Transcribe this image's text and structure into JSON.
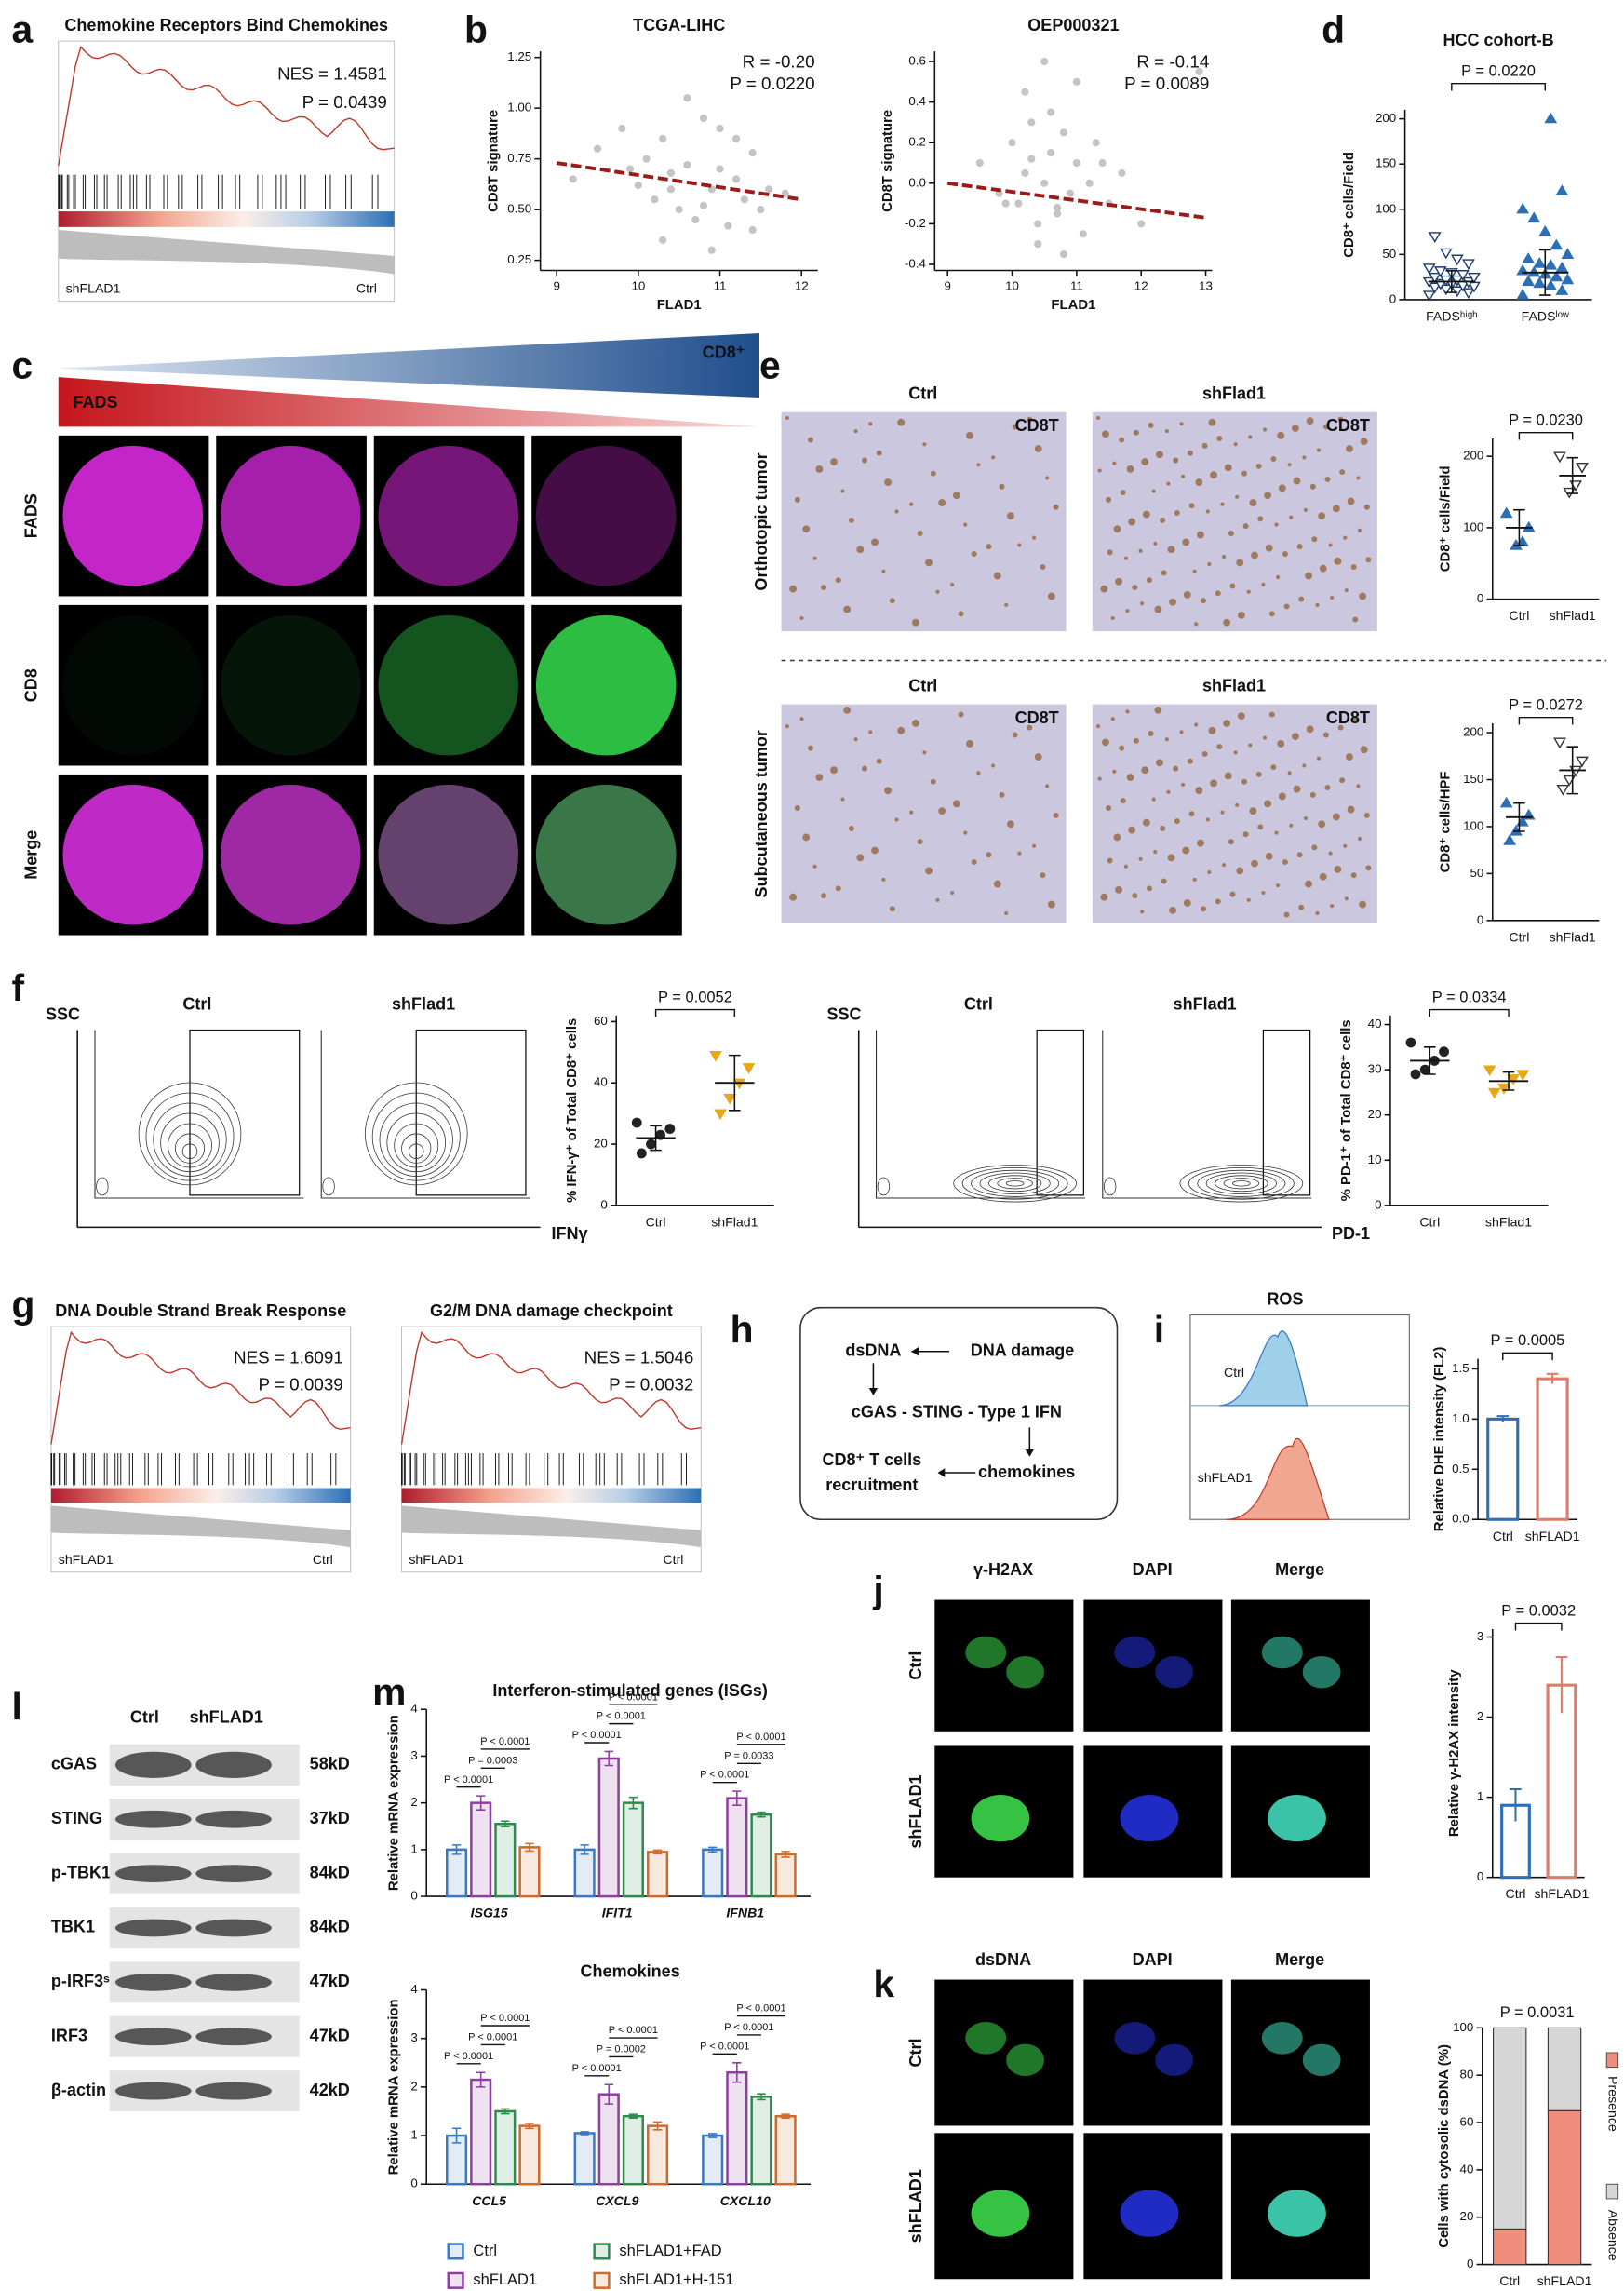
{
  "panel_labels": [
    "a",
    "b",
    "c",
    "d",
    "e",
    "f",
    "g",
    "h",
    "i",
    "j",
    "k",
    "l",
    "m"
  ],
  "gsea": [
    {
      "title": "Chemokine Receptors Bind Chemokines",
      "nes": "NES = 1.4581",
      "p": "P = 0.0439",
      "left": "shFLAD1",
      "right": "Ctrl"
    },
    {
      "title": "DNA Double Strand Break Response",
      "nes": "NES = 1.6091",
      "p": "P = 0.0039",
      "left": "shFLAD1",
      "right": "Ctrl"
    },
    {
      "title": "G2/M DNA damage checkpoint",
      "nes": "NES = 1.5046",
      "p": "P = 0.0032",
      "left": "shFLAD1",
      "right": "Ctrl"
    }
  ],
  "panel_c": {
    "gradient_left": "FADS",
    "gradient_right": "CD8⁺",
    "rows": [
      "FADS",
      "CD8",
      "Merge"
    ]
  },
  "panel_e": {
    "columns": [
      "Ctrl",
      "shFlad1"
    ],
    "rows": [
      "Orthotopic tumor",
      "Subcutaneous tumor"
    ],
    "stain": "CD8T"
  },
  "panel_f": {
    "groups": [
      "Ctrl",
      "shFlad1"
    ],
    "y_label": "SSC",
    "x_labels": [
      "IFNγ",
      "PD-1"
    ]
  },
  "panel_h": {
    "nodes": [
      "dsDNA",
      "DNA damage",
      "cGAS - STING - Type 1 IFN",
      "chemokines",
      "CD8⁺ T cells",
      "recruitment"
    ]
  },
  "panel_i": {
    "title": "ROS",
    "groups": [
      "Ctrl",
      "shFLAD1"
    ]
  },
  "panel_j": {
    "columns": [
      "γ-H2AX",
      "DAPI",
      "Merge"
    ],
    "rows": [
      "Ctrl",
      "shFLAD1"
    ]
  },
  "panel_k": {
    "columns": [
      "dsDNA",
      "DAPI",
      "Merge"
    ],
    "rows": [
      "Ctrl",
      "shFLAD1"
    ]
  },
  "panel_l": {
    "columns": [
      "Ctrl",
      "shFLAD1"
    ],
    "proteins": [
      "cGAS",
      "STING",
      "p-TBK1ˢ¹⁷²",
      "TBK1",
      "p-IRF3ˢ³⁹⁶",
      "IRF3",
      "β-actin"
    ],
    "sizes": [
      "58kD",
      "37kD",
      "84kD",
      "84kD",
      "47kD",
      "47kD",
      "42kD"
    ]
  },
  "chart_data": [
    {
      "type": "scatter",
      "title": "TCGA-LIHC",
      "x_label": "FLAD1",
      "y_label": "CD8T signature",
      "x": [
        9.2,
        9.5,
        9.8,
        10.0,
        10.1,
        10.2,
        10.3,
        10.4,
        10.5,
        10.6,
        10.7,
        10.8,
        10.9,
        11.0,
        11.1,
        11.2,
        11.3,
        11.4,
        11.5,
        11.6,
        11.8,
        10.3,
        10.6,
        10.9,
        11.2,
        9.9,
        10.4,
        10.8,
        11.0,
        11.4
      ],
      "y": [
        0.65,
        0.8,
        0.9,
        0.62,
        0.75,
        0.55,
        0.85,
        0.68,
        0.5,
        0.72,
        0.45,
        0.95,
        0.6,
        0.7,
        0.42,
        0.65,
        0.55,
        0.78,
        0.5,
        0.6,
        0.58,
        0.35,
        1.05,
        0.3,
        0.85,
        0.7,
        0.6,
        0.52,
        0.9,
        0.4
      ],
      "color": "#c4c4c4",
      "fit": {
        "x": [
          9,
          12
        ],
        "y": [
          0.73,
          0.55
        ],
        "color": "#9b1b1b"
      },
      "annotations": [
        "R = -0.20",
        "P = 0.0220"
      ],
      "xlim": [
        8.8,
        12.2
      ],
      "xticks": [
        9,
        10,
        11,
        12
      ],
      "ylim": [
        0.2,
        1.28
      ],
      "yticks": [
        0.25,
        {
          "value": 0.5,
          "label": "0.50"
        },
        0.75,
        {
          "value": 1,
          "label": "1.00"
        },
        1.25
      ]
    },
    {
      "type": "scatter",
      "title": "OEP000321",
      "x_label": "FLAD1",
      "y_label": "CD8T signature",
      "x": [
        9.5,
        9.8,
        10.0,
        10.1,
        10.2,
        10.3,
        10.4,
        10.5,
        10.6,
        10.7,
        10.8,
        10.9,
        11.0,
        11.1,
        11.2,
        11.3,
        11.5,
        11.7,
        12.0,
        12.9,
        10.2,
        10.4,
        10.6,
        10.8,
        11.0,
        10.5,
        9.9,
        11.4,
        10.3,
        10.7
      ],
      "y": [
        0.1,
        -0.05,
        0.2,
        -0.1,
        0.05,
        0.3,
        -0.2,
        0.0,
        0.15,
        -0.15,
        0.25,
        -0.05,
        0.1,
        -0.25,
        0.0,
        0.2,
        -0.1,
        0.05,
        -0.2,
        0.55,
        0.45,
        -0.3,
        0.35,
        -0.35,
        0.5,
        0.6,
        -0.1,
        0.1,
        0.12,
        -0.12
      ],
      "color": "#c4c4c4",
      "fit": {
        "x": [
          9,
          13
        ],
        "y": [
          0.0,
          -0.17
        ],
        "color": "#9b1b1b"
      },
      "annotations": [
        "R = -0.14",
        "P = 0.0089"
      ],
      "xlim": [
        8.8,
        13.1
      ],
      "xticks": [
        9,
        10,
        11,
        12,
        13
      ],
      "ylim": [
        -0.43,
        0.65
      ],
      "yticks": [
        -0.4,
        -0.2,
        {
          "value": 0,
          "label": "0.0"
        },
        0.2,
        0.4,
        0.6
      ]
    },
    {
      "type": "dot",
      "title": "HCC cohort-B",
      "y_label": "CD8⁺ cells/Field",
      "categories": [
        "FADSʰⁱᵍʰ",
        "FADSˡᵒʷ"
      ],
      "values": [
        [
          5,
          8,
          10,
          12,
          14,
          15,
          16,
          18,
          18,
          20,
          20,
          22,
          22,
          25,
          25,
          28,
          30,
          32,
          35,
          40,
          45,
          52,
          70
        ],
        [
          5,
          10,
          15,
          18,
          20,
          22,
          25,
          28,
          30,
          32,
          35,
          38,
          40,
          45,
          50,
          60,
          75,
          90,
          100,
          120,
          200
        ]
      ],
      "means": [
        20,
        30
      ],
      "errors": [
        12,
        25
      ],
      "colors": [
        "#1a3a6b",
        "#2e6fb3"
      ],
      "markers": [
        "triangle-down-open",
        "triangle-up"
      ],
      "annotation": "P = 0.0220",
      "ylim": [
        0,
        210
      ],
      "yticks": [
        0,
        50,
        100,
        150,
        200
      ]
    },
    {
      "type": "dot",
      "y_label": "CD8⁺ cells/Field",
      "categories": [
        "Ctrl",
        "shFlad1"
      ],
      "values": [
        [
          120,
          100,
          80,
          75
        ],
        [
          200,
          185,
          160,
          150
        ]
      ],
      "means": [
        100,
        173
      ],
      "errors": [
        25,
        25
      ],
      "colors": [
        "#2e6fb3",
        "#333333"
      ],
      "markers": [
        "triangle-up",
        "triangle-down-open"
      ],
      "annotation": "P = 0.0230",
      "ylim": [
        0,
        225
      ],
      "yticks": [
        0,
        100,
        200
      ]
    },
    {
      "type": "dot",
      "y_label": "CD8⁺ cells/HPF",
      "categories": [
        "Ctrl",
        "shFlad1"
      ],
      "values": [
        [
          125,
          112,
          105,
          95,
          85
        ],
        [
          190,
          170,
          160,
          150,
          140
        ]
      ],
      "means": [
        110,
        160
      ],
      "errors": [
        15,
        25
      ],
      "colors": [
        "#2e6fb3",
        "#333333"
      ],
      "markers": [
        "triangle-up",
        "triangle-down-open"
      ],
      "annotation": "P = 0.0272",
      "ylim": [
        0,
        210
      ],
      "yticks": [
        0,
        50,
        100,
        150,
        200
      ]
    },
    {
      "type": "dot",
      "y_label": "% IFN-γ⁺ of Total CD8⁺ cells",
      "categories": [
        "Ctrl",
        "shFlad1"
      ],
      "values": [
        [
          27,
          25,
          23,
          20,
          17
        ],
        [
          49,
          45,
          40,
          35,
          30
        ]
      ],
      "means": [
        22,
        40
      ],
      "errors": [
        4,
        9
      ],
      "colors": [
        "#222222",
        "#e6a817"
      ],
      "markers": [
        "circle",
        "triangle-down"
      ],
      "annotation": "P = 0.0052",
      "ylim": [
        0,
        62
      ],
      "yticks": [
        0,
        20,
        40,
        60
      ]
    },
    {
      "type": "dot",
      "y_label": "% PD-1⁺ of Total CD8⁺ cells",
      "categories": [
        "Ctrl",
        "shFlad1"
      ],
      "values": [
        [
          36,
          34,
          32,
          30,
          29
        ],
        [
          30,
          29,
          28,
          26,
          25
        ]
      ],
      "means": [
        32,
        27.5
      ],
      "errors": [
        3,
        2
      ],
      "colors": [
        "#222222",
        "#e6a817"
      ],
      "markers": [
        "circle",
        "triangle-down"
      ],
      "annotation": "P = 0.0334",
      "ylim": [
        0,
        42
      ],
      "yticks": [
        0,
        10,
        20,
        30,
        40
      ]
    },
    {
      "type": "bar",
      "y_label": "Relative DHE intensity (FL2)",
      "categories": [
        "Ctrl",
        "shFLAD1"
      ],
      "values": [
        1.0,
        1.4
      ],
      "errors": [
        0.03,
        0.05
      ],
      "colors": [
        "#2e6fb3",
        "#e07b6a"
      ],
      "annotation": "P = 0.0005",
      "ylim": [
        0,
        1.6
      ],
      "yticks": [
        {
          "value": 0,
          "label": "0.0"
        },
        0.5,
        {
          "value": 1,
          "label": "1.0"
        },
        1.5
      ]
    },
    {
      "type": "bar",
      "y_label": "Relative γ-H2AX intensity",
      "categories": [
        "Ctrl",
        "shFLAD1"
      ],
      "values": [
        0.9,
        2.4
      ],
      "errors": [
        0.2,
        0.35
      ],
      "colors": [
        "#2e6fb3",
        "#e07b6a"
      ],
      "annotation": "P = 0.0032",
      "ylim": [
        0,
        3.1
      ],
      "yticks": [
        0,
        1,
        2,
        3
      ]
    },
    {
      "type": "stacked_bar",
      "y_label": "Cells with cytosolic dsDNA (%)",
      "categories": [
        "Ctrl",
        "shFLAD1"
      ],
      "series": [
        {
          "name": "Presence",
          "color": "#f08e7e",
          "values": [
            15,
            65
          ]
        },
        {
          "name": "Absence",
          "color": "#d6d6d6",
          "values": [
            85,
            35
          ]
        }
      ],
      "annotation": "P = 0.0031",
      "ylim": [
        0,
        100
      ],
      "yticks": [
        0,
        20,
        40,
        60,
        80,
        100
      ]
    },
    {
      "type": "grouped_bar",
      "title": "Interferon-stimulated genes (ISGs)",
      "y_label": "Relative mRNA expression",
      "categories": [
        "ISG15",
        "IFIT1",
        "IFNB1"
      ],
      "series": [
        {
          "name": "Ctrl",
          "color": "#3a78c2",
          "values": [
            1.0,
            1.0,
            1.0
          ],
          "errors": [
            0.1,
            0.1,
            0.05
          ]
        },
        {
          "name": "shFLAD1",
          "color": "#8e3fa0",
          "values": [
            2.0,
            2.95,
            2.1
          ],
          "errors": [
            0.15,
            0.15,
            0.15
          ]
        },
        {
          "name": "shFLAD1+FAD",
          "color": "#2e8b4e",
          "values": [
            1.55,
            2.0,
            1.75
          ],
          "errors": [
            0.06,
            0.12,
            0.05
          ]
        },
        {
          "name": "shFLAD1+H-151",
          "color": "#cf6a2a",
          "values": [
            1.05,
            0.95,
            0.9
          ],
          "errors": [
            0.08,
            0.04,
            0.06
          ]
        }
      ],
      "annotations": [
        [
          "P < 0.0001",
          "P = 0.0003",
          "P < 0.0001"
        ],
        [
          "P < 0.0001",
          "P < 0.0001",
          "P < 0.0001"
        ],
        [
          "P < 0.0001",
          "P = 0.0033",
          "P < 0.0001"
        ]
      ],
      "ylim": [
        0,
        4
      ],
      "yticks": [
        0,
        1,
        2,
        3,
        4
      ]
    },
    {
      "type": "grouped_bar",
      "title": "Chemokines",
      "y_label": "Relative mRNA expression",
      "categories": [
        "CCL5",
        "CXCL9",
        "CXCL10"
      ],
      "series": [
        {
          "color": "#3a78c2",
          "values": [
            1.0,
            1.05,
            1.0
          ],
          "errors": [
            0.15,
            0.03,
            0.04
          ]
        },
        {
          "color": "#8e3fa0",
          "values": [
            2.15,
            1.85,
            2.3
          ],
          "errors": [
            0.15,
            0.2,
            0.2
          ]
        },
        {
          "color": "#2e8b4e",
          "values": [
            1.5,
            1.4,
            1.8
          ],
          "errors": [
            0.05,
            0.04,
            0.06
          ]
        },
        {
          "color": "#cf6a2a",
          "values": [
            1.2,
            1.2,
            1.4
          ],
          "errors": [
            0.05,
            0.08,
            0.04
          ]
        }
      ],
      "annotations": [
        [
          "P < 0.0001",
          "P < 0.0001",
          "P < 0.0001"
        ],
        [
          "P < 0.0001",
          "P = 0.0002",
          "P < 0.0001"
        ],
        [
          "P < 0.0001",
          "P < 0.0001",
          "P < 0.0001"
        ]
      ],
      "ylim": [
        0,
        4
      ],
      "yticks": [
        0,
        1,
        2,
        3,
        4
      ]
    }
  ]
}
